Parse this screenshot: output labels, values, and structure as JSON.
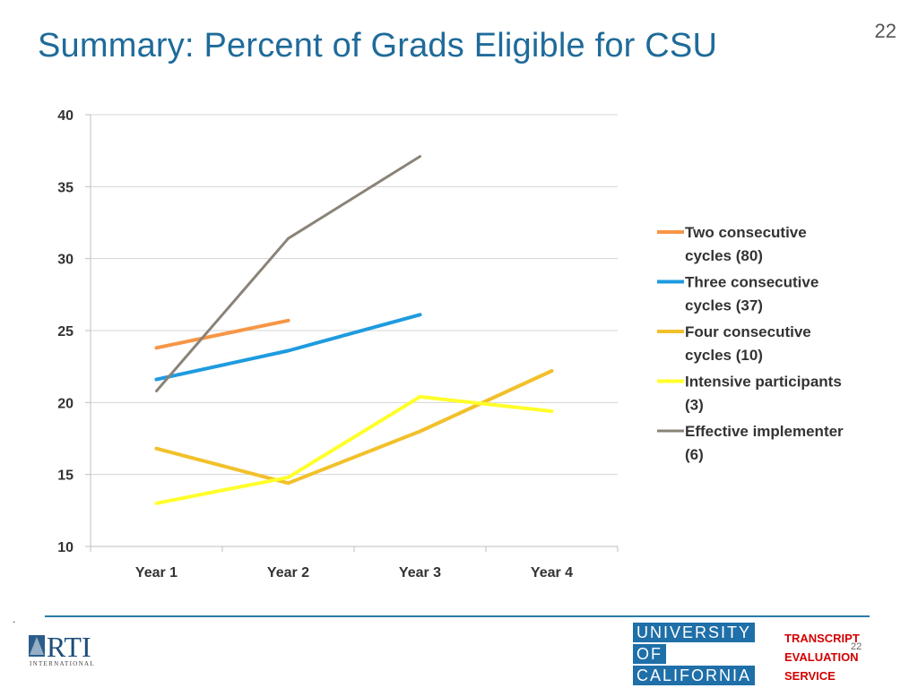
{
  "slide": {
    "title": "Summary: Percent of Grads Eligible for CSU",
    "page_number": "22",
    "footer_dot": ".",
    "footer_page": "22"
  },
  "logos": {
    "rti_text": "RTI",
    "rti_subtext": "INTERNATIONAL",
    "uc_lines": [
      "UNIVERSITY",
      "OF",
      "CALIFORNIA"
    ],
    "tes_lines": [
      "TRANSCRIPT",
      "EVALUATION",
      "SERVICE"
    ]
  },
  "chart_data": {
    "type": "line",
    "title": "",
    "xlabel": "",
    "ylabel": "",
    "categories": [
      "Year 1",
      "Year 2",
      "Year 3",
      "Year 4"
    ],
    "ylim": [
      10,
      40
    ],
    "yticks": [
      10,
      15,
      20,
      25,
      30,
      35,
      40
    ],
    "grid": true,
    "legend_position": "right",
    "series": [
      {
        "name": "Two consecutive cycles (80)",
        "legend_lines": [
          "Two consecutive",
          "cycles (80)"
        ],
        "color": "#f79646",
        "values": [
          23.8,
          25.7,
          null,
          null
        ]
      },
      {
        "name": "Three consecutive cycles (37)",
        "legend_lines": [
          "Three consecutive",
          "cycles (37)"
        ],
        "color": "#1e9be0",
        "values": [
          21.6,
          23.6,
          26.1,
          null
        ]
      },
      {
        "name": "Four consecutive cycles (10)",
        "legend_lines": [
          "Four consecutive",
          "cycles (10)"
        ],
        "color": "#f2c02a",
        "values": [
          16.8,
          14.4,
          18.0,
          22.2
        ]
      },
      {
        "name": "Intensive participants (3)",
        "legend_lines": [
          "Intensive participants",
          "(3)"
        ],
        "color": "#ffff2a",
        "values": [
          13.0,
          14.8,
          20.4,
          19.4
        ]
      },
      {
        "name": "Effective implementer (6)",
        "legend_lines": [
          "Effective implementer",
          "(6)"
        ],
        "color": "#8a8377",
        "values": [
          20.8,
          31.4,
          37.1,
          null
        ]
      }
    ]
  }
}
